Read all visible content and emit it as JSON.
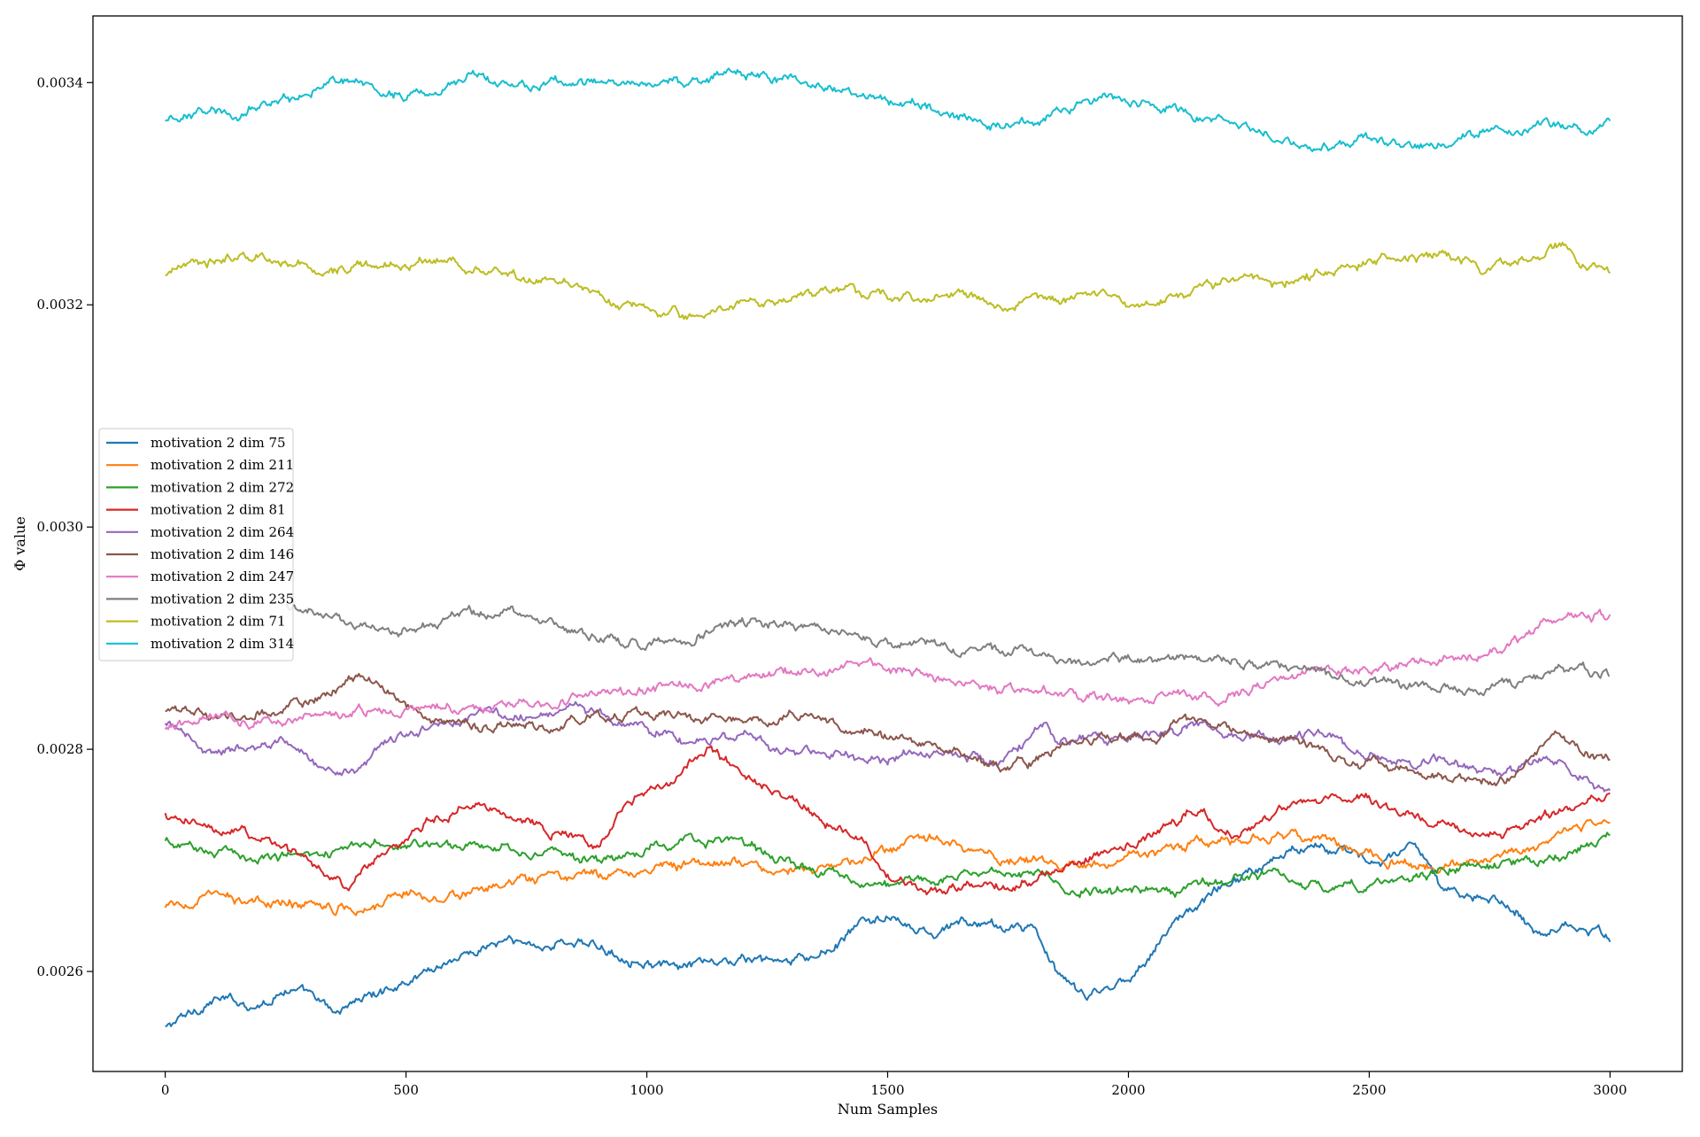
{
  "chart_data": {
    "type": "line",
    "title": "",
    "xlabel": "Num Samples",
    "ylabel": "Φ value",
    "xlim": [
      -150,
      3150
    ],
    "ylim": [
      0.00251,
      0.00346
    ],
    "xticks": [
      0,
      500,
      1000,
      1500,
      2000,
      2500,
      3000
    ],
    "xtick_labels": [
      "0",
      "500",
      "1000",
      "1500",
      "2000",
      "2500",
      "3000"
    ],
    "yticks": [
      0.0026,
      0.0028,
      0.003,
      0.0032,
      0.0034
    ],
    "ytick_labels": [
      "0.0026",
      "0.0028",
      "0.0030",
      "0.0032",
      "0.0034"
    ],
    "grid": false,
    "legend_position": "center-left",
    "series": [
      {
        "name": "motivation 2 dim 75",
        "color": "#1f77b4",
        "x": [
          0,
          100,
          200,
          250,
          300,
          350,
          400,
          450,
          500,
          600,
          700,
          800,
          850,
          900,
          1000,
          1050,
          1100,
          1200,
          1300,
          1350,
          1400,
          1450,
          1500,
          1550,
          1600,
          1650,
          1700,
          1750,
          1800,
          1850,
          1900,
          1950,
          2000,
          2050,
          2100,
          2150,
          2200,
          2250,
          2300,
          2350,
          2400,
          2450,
          2500,
          2550,
          2600,
          2650,
          2700,
          2750,
          2800,
          2850,
          2900,
          2950,
          3000
        ],
        "y": [
          0.002549,
          0.002575,
          0.00257,
          0.002585,
          0.002578,
          0.002562,
          0.002575,
          0.002582,
          0.002592,
          0.002612,
          0.002627,
          0.002623,
          0.002628,
          0.002621,
          0.002609,
          0.002602,
          0.002605,
          0.00261,
          0.002608,
          0.002612,
          0.002625,
          0.002645,
          0.002649,
          0.002638,
          0.002632,
          0.002645,
          0.002642,
          0.002638,
          0.002643,
          0.002598,
          0.002578,
          0.002582,
          0.002596,
          0.002618,
          0.002648,
          0.00266,
          0.00268,
          0.00269,
          0.0027,
          0.002712,
          0.002718,
          0.002706,
          0.002698,
          0.002705,
          0.002712,
          0.00267,
          0.002672,
          0.002668,
          0.002658,
          0.002635,
          0.002643,
          0.00264,
          0.00263
        ]
      },
      {
        "name": "motivation 2 dim 211",
        "color": "#ff7f0e",
        "x": [
          0,
          100,
          200,
          300,
          400,
          500,
          600,
          700,
          800,
          900,
          1000,
          1100,
          1200,
          1300,
          1400,
          1500,
          1550,
          1600,
          1700,
          1800,
          1900,
          2000,
          2100,
          2200,
          2300,
          2400,
          2500,
          2600,
          2700,
          2800,
          2900,
          3000
        ],
        "y": [
          0.002657,
          0.002668,
          0.00266,
          0.002663,
          0.002657,
          0.002672,
          0.002668,
          0.002677,
          0.002683,
          0.002686,
          0.002693,
          0.002699,
          0.002697,
          0.002692,
          0.002694,
          0.002707,
          0.002717,
          0.00272,
          0.002706,
          0.0027,
          0.002692,
          0.002703,
          0.002711,
          0.002717,
          0.002723,
          0.002719,
          0.002706,
          0.002695,
          0.002697,
          0.002708,
          0.002723,
          0.00274
        ]
      },
      {
        "name": "motivation 2 dim 272",
        "color": "#2ca02c",
        "x": [
          0,
          100,
          200,
          300,
          400,
          500,
          600,
          700,
          800,
          900,
          1000,
          1050,
          1100,
          1200,
          1300,
          1400,
          1500,
          1600,
          1700,
          1800,
          1900,
          2000,
          2100,
          2200,
          2300,
          2400,
          2500,
          2600,
          2700,
          2800,
          2900,
          3000
        ],
        "y": [
          0.002716,
          0.002708,
          0.002704,
          0.002708,
          0.002712,
          0.002714,
          0.002716,
          0.002713,
          0.002707,
          0.002698,
          0.002708,
          0.002714,
          0.002718,
          0.002716,
          0.002697,
          0.002686,
          0.002677,
          0.002683,
          0.002693,
          0.002689,
          0.002673,
          0.002671,
          0.002672,
          0.002683,
          0.002688,
          0.002675,
          0.002677,
          0.002688,
          0.002695,
          0.002695,
          0.002705,
          0.002719
        ]
      },
      {
        "name": "motivation 2 dim 81",
        "color": "#d62728",
        "x": [
          0,
          50,
          100,
          150,
          200,
          250,
          300,
          350,
          380,
          400,
          450,
          500,
          550,
          600,
          650,
          700,
          750,
          800,
          850,
          900,
          950,
          1000,
          1050,
          1100,
          1130,
          1200,
          1250,
          1300,
          1350,
          1400,
          1450,
          1500,
          1550,
          1600,
          1650,
          1700,
          1750,
          1800,
          1850,
          1900,
          1950,
          2000,
          2050,
          2100,
          2150,
          2200,
          2250,
          2300,
          2350,
          2400,
          2450,
          2500,
          2550,
          2600,
          2650,
          2700,
          2750,
          2800,
          2850,
          2900,
          2950,
          3000
        ],
        "y": [
          0.00274,
          0.002732,
          0.002728,
          0.00273,
          0.002718,
          0.002712,
          0.002698,
          0.002686,
          0.002672,
          0.002688,
          0.002705,
          0.002714,
          0.002735,
          0.002745,
          0.002752,
          0.002743,
          0.002738,
          0.002728,
          0.002725,
          0.002712,
          0.002745,
          0.002762,
          0.002768,
          0.00279,
          0.002803,
          0.002775,
          0.002765,
          0.002755,
          0.002745,
          0.00273,
          0.002712,
          0.002687,
          0.00268,
          0.002672,
          0.002675,
          0.00268,
          0.002676,
          0.002683,
          0.002695,
          0.0027,
          0.002707,
          0.002712,
          0.002722,
          0.002735,
          0.002748,
          0.00272,
          0.002728,
          0.00274,
          0.002752,
          0.002757,
          0.00275,
          0.002755,
          0.002744,
          0.002738,
          0.002735,
          0.00273,
          0.002722,
          0.002728,
          0.002735,
          0.002742,
          0.002748,
          0.002765
        ]
      },
      {
        "name": "motivation 2 dim 264",
        "color": "#9467bd",
        "x": [
          0,
          50,
          100,
          150,
          200,
          250,
          300,
          350,
          400,
          450,
          500,
          550,
          600,
          650,
          700,
          750,
          800,
          850,
          900,
          950,
          1000,
          1050,
          1100,
          1150,
          1200,
          1250,
          1300,
          1350,
          1400,
          1450,
          1500,
          1550,
          1600,
          1650,
          1700,
          1750,
          1800,
          1830,
          1850,
          1900,
          1950,
          2000,
          2050,
          2100,
          2150,
          2200,
          2250,
          2300,
          2350,
          2400,
          2450,
          2500,
          2550,
          2600,
          2650,
          2700,
          2750,
          2800,
          2850,
          2900,
          2950,
          3000
        ],
        "y": [
          0.002822,
          0.00281,
          0.002797,
          0.0028,
          0.002803,
          0.002806,
          0.00279,
          0.002782,
          0.002785,
          0.002803,
          0.002812,
          0.002823,
          0.002827,
          0.002833,
          0.002832,
          0.00283,
          0.002833,
          0.002837,
          0.002831,
          0.002827,
          0.002818,
          0.002811,
          0.002805,
          0.00281,
          0.002812,
          0.002801,
          0.002795,
          0.002797,
          0.002797,
          0.00279,
          0.002792,
          0.0028,
          0.002798,
          0.002795,
          0.00279,
          0.002795,
          0.002808,
          0.002825,
          0.002805,
          0.002812,
          0.002808,
          0.00281,
          0.002815,
          0.002817,
          0.002822,
          0.002815,
          0.00281,
          0.002808,
          0.002812,
          0.002815,
          0.002802,
          0.002797,
          0.002793,
          0.002788,
          0.00279,
          0.002782,
          0.00278,
          0.002785,
          0.00279,
          0.00279,
          0.002772,
          0.00276
        ]
      },
      {
        "name": "motivation 2 dim 146",
        "color": "#8c564b",
        "x": [
          0,
          50,
          100,
          150,
          200,
          250,
          300,
          350,
          400,
          450,
          500,
          550,
          600,
          650,
          700,
          750,
          800,
          850,
          900,
          950,
          1000,
          1050,
          1100,
          1150,
          1200,
          1250,
          1300,
          1350,
          1400,
          1450,
          1500,
          1550,
          1600,
          1650,
          1700,
          1750,
          1800,
          1850,
          1900,
          1950,
          2000,
          2050,
          2100,
          2150,
          2200,
          2250,
          2300,
          2350,
          2400,
          2450,
          2500,
          2550,
          2600,
          2650,
          2700,
          2750,
          2800,
          2850,
          2900,
          2950,
          3000
        ],
        "y": [
          0.002832,
          0.002838,
          0.00283,
          0.002826,
          0.002833,
          0.002838,
          0.002842,
          0.002852,
          0.002868,
          0.002858,
          0.002838,
          0.002828,
          0.002825,
          0.00282,
          0.002825,
          0.002822,
          0.002818,
          0.002825,
          0.002828,
          0.00283,
          0.002833,
          0.00283,
          0.002825,
          0.002832,
          0.00283,
          0.002826,
          0.002832,
          0.002828,
          0.002822,
          0.002818,
          0.00281,
          0.002806,
          0.002802,
          0.002796,
          0.00279,
          0.002782,
          0.002788,
          0.002798,
          0.002806,
          0.00281,
          0.002808,
          0.002812,
          0.00282,
          0.002826,
          0.00282,
          0.002813,
          0.002808,
          0.002805,
          0.002798,
          0.00279,
          0.002788,
          0.002782,
          0.00278,
          0.002776,
          0.002772,
          0.00277,
          0.002778,
          0.0028,
          0.00281,
          0.002798,
          0.00279
        ]
      },
      {
        "name": "motivation 2 dim 247",
        "color": "#e377c2",
        "x": [
          0,
          100,
          200,
          300,
          400,
          500,
          600,
          700,
          800,
          900,
          1000,
          1100,
          1200,
          1300,
          1400,
          1450,
          1500,
          1600,
          1700,
          1800,
          1900,
          2000,
          2100,
          2200,
          2300,
          2400,
          2500,
          2600,
          2700,
          2800,
          2900,
          3000
        ],
        "y": [
          0.00282,
          0.002828,
          0.002826,
          0.002832,
          0.002836,
          0.002833,
          0.002836,
          0.002838,
          0.00284,
          0.002848,
          0.002853,
          0.002857,
          0.002865,
          0.00287,
          0.002873,
          0.002878,
          0.002873,
          0.002865,
          0.002856,
          0.002852,
          0.002848,
          0.002843,
          0.002851,
          0.002847,
          0.002862,
          0.002872,
          0.00287,
          0.002877,
          0.002882,
          0.002895,
          0.002922,
          0.00292
        ]
      },
      {
        "name": "motivation 2 dim 235",
        "color": "#7f7f7f",
        "x": [
          250,
          300,
          400,
          500,
          600,
          700,
          800,
          900,
          1000,
          1100,
          1200,
          1300,
          1400,
          1500,
          1600,
          1700,
          1800,
          1900,
          2000,
          2100,
          2200,
          2300,
          2400,
          2500,
          2600,
          2700,
          2800,
          2900,
          3000
        ],
        "y": [
          0.00293,
          0.00292,
          0.00291,
          0.002905,
          0.002918,
          0.002928,
          0.002915,
          0.002898,
          0.002894,
          0.002903,
          0.002915,
          0.002912,
          0.002903,
          0.002898,
          0.002893,
          0.002887,
          0.002888,
          0.00288,
          0.002882,
          0.002885,
          0.00288,
          0.002873,
          0.002868,
          0.002862,
          0.002858,
          0.002853,
          0.002858,
          0.002872,
          0.002868
        ]
      },
      {
        "name": "motivation 2 dim 71",
        "color": "#bcbd22",
        "x": [
          0,
          50,
          100,
          150,
          200,
          250,
          300,
          350,
          400,
          450,
          500,
          550,
          600,
          650,
          700,
          750,
          800,
          850,
          900,
          950,
          1000,
          1050,
          1100,
          1150,
          1200,
          1250,
          1300,
          1350,
          1400,
          1450,
          1500,
          1550,
          1600,
          1650,
          1700,
          1740,
          1780,
          1850,
          1900,
          1950,
          2000,
          2050,
          2100,
          2150,
          2200,
          2250,
          2300,
          2350,
          2400,
          2450,
          2500,
          2550,
          2600,
          2650,
          2700,
          2750,
          2800,
          2850,
          2900,
          2950,
          3000
        ],
        "y": [
          0.003229,
          0.003236,
          0.003238,
          0.003242,
          0.003245,
          0.003238,
          0.003233,
          0.003232,
          0.003234,
          0.003231,
          0.003238,
          0.003243,
          0.003242,
          0.003232,
          0.003228,
          0.00322,
          0.003223,
          0.003219,
          0.003208,
          0.003197,
          0.003196,
          0.003192,
          0.003187,
          0.003197,
          0.003201,
          0.003204,
          0.003209,
          0.00321,
          0.003213,
          0.003212,
          0.003208,
          0.003207,
          0.00321,
          0.003208,
          0.003206,
          0.00319,
          0.003203,
          0.003205,
          0.003206,
          0.003208,
          0.003199,
          0.003199,
          0.003203,
          0.003215,
          0.003222,
          0.003225,
          0.003215,
          0.003225,
          0.003229,
          0.003235,
          0.003241,
          0.003242,
          0.003244,
          0.003245,
          0.003238,
          0.00323,
          0.003238,
          0.003248,
          0.003255,
          0.003235,
          0.00323
        ]
      },
      {
        "name": "motivation 2 dim 314",
        "color": "#17becf",
        "x": [
          0,
          50,
          100,
          150,
          200,
          250,
          300,
          350,
          400,
          450,
          500,
          550,
          600,
          650,
          700,
          750,
          800,
          850,
          900,
          950,
          1000,
          1050,
          1100,
          1150,
          1200,
          1250,
          1300,
          1350,
          1400,
          1450,
          1500,
          1550,
          1600,
          1650,
          1700,
          1750,
          1800,
          1850,
          1900,
          1950,
          2000,
          2050,
          2100,
          2150,
          2200,
          2250,
          2300,
          2350,
          2400,
          2450,
          2500,
          2550,
          2600,
          2650,
          2700,
          2750,
          2800,
          2850,
          2900,
          2950,
          3000
        ],
        "y": [
          0.003367,
          0.00337,
          0.003378,
          0.003368,
          0.003382,
          0.003385,
          0.003392,
          0.003402,
          0.003397,
          0.003392,
          0.003388,
          0.00339,
          0.0034,
          0.003403,
          0.003398,
          0.003397,
          0.003398,
          0.003402,
          0.0034,
          0.0034,
          0.003398,
          0.0034,
          0.003402,
          0.003407,
          0.00341,
          0.003405,
          0.003403,
          0.003398,
          0.003392,
          0.003388,
          0.003383,
          0.003382,
          0.003374,
          0.003368,
          0.003362,
          0.003364,
          0.003367,
          0.003373,
          0.00338,
          0.003388,
          0.003385,
          0.00338,
          0.003378,
          0.00337,
          0.003368,
          0.003362,
          0.003352,
          0.003345,
          0.003342,
          0.003345,
          0.003348,
          0.003343,
          0.003342,
          0.003345,
          0.00335,
          0.003355,
          0.00336,
          0.003362,
          0.00336,
          0.003358,
          0.003365
        ]
      }
    ]
  }
}
